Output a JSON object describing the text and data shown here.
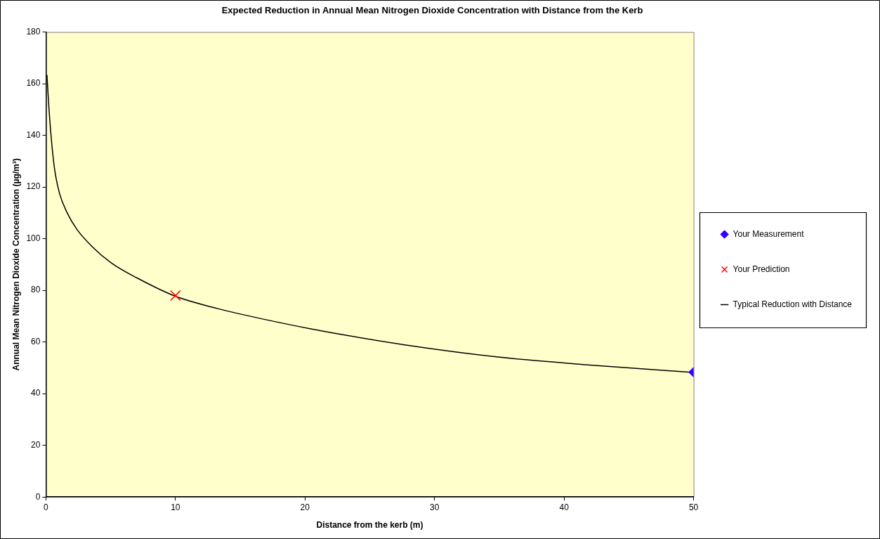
{
  "chart_data": {
    "type": "scatter",
    "title": "Expected Reduction in Annual Mean Nitrogen Dioxide Concentration with Distance from the Kerb",
    "xlabel": "Distance from the kerb (m)",
    "ylabel": "Annual Mean Nitrogen Dioxide Concentration (µg/m³)",
    "xlim": [
      0,
      50
    ],
    "xticks": [
      0,
      10,
      20,
      30,
      40,
      50
    ],
    "ylim": [
      0,
      180
    ],
    "yticks": [
      0,
      20,
      40,
      60,
      80,
      100,
      120,
      140,
      160,
      180
    ],
    "grid": false,
    "legend": "right",
    "series": [
      {
        "name": "Your Measurement",
        "type": "scatter",
        "marker": "diamond",
        "color": "#3300ff",
        "x": [
          50
        ],
        "values": [
          48.3
        ]
      },
      {
        "name": "Your Prediction",
        "type": "scatter",
        "marker": "cross",
        "color": "#ff0000",
        "x": [
          10
        ],
        "values": [
          78
        ]
      },
      {
        "name": "Typical Reduction with Distance",
        "type": "line",
        "marker": "none",
        "color": "#000000",
        "x": [
          0.08,
          0.17,
          0.37,
          0.66,
          1.04,
          1.62,
          2.39,
          3.55,
          5.1,
          7.03,
          10,
          13.2,
          14.76,
          20.45,
          27.7,
          34.9,
          42.2,
          49.8
        ],
        "values": [
          163.4,
          155.4,
          141.3,
          127.2,
          117.7,
          110.2,
          103.6,
          97,
          90.4,
          84.8,
          77.7,
          73,
          71.1,
          65.1,
          58.9,
          54.2,
          51,
          48.3
        ]
      }
    ]
  }
}
